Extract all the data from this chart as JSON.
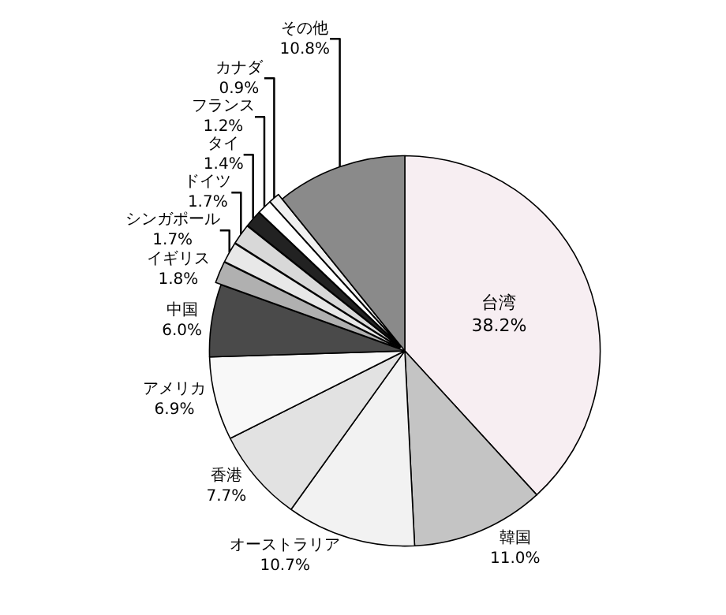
{
  "chart_data": {
    "type": "pie",
    "categories": [
      "台湾",
      "韓国",
      "オーストラリア",
      "香港",
      "アメリカ",
      "中国",
      "イギリス",
      "シンガポール",
      "ドイツ",
      "タイ",
      "フランス",
      "カナダ",
      "その他"
    ],
    "values": [
      38.2,
      11.0,
      10.7,
      7.7,
      6.9,
      6.0,
      1.8,
      1.7,
      1.7,
      1.4,
      1.2,
      0.9,
      10.8
    ],
    "colors": [
      "#f7eef2",
      "#c4c4c4",
      "#f2f2f2",
      "#e2e2e2",
      "#f8f8f8",
      "#4a4a4a",
      "#b0b0b0",
      "#e8e8e8",
      "#d8d8d8",
      "#222222",
      "#ffffff",
      "#f0f0f0",
      "#8a8a8a"
    ],
    "value_labels": [
      "38.2%",
      "11.0%",
      "10.7%",
      "7.7%",
      "6.9%",
      "6.0%",
      "1.8%",
      "1.7%",
      "1.7%",
      "1.4%",
      "1.2%",
      "0.9%",
      "10.8%"
    ],
    "legend": false
  }
}
